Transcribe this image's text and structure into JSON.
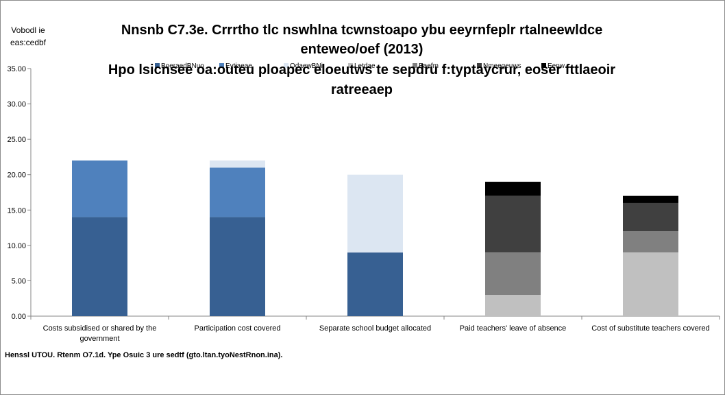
{
  "chart_data": {
    "type": "bar",
    "stacked": true,
    "title_lines": [
      "Nnsnb C7.3e. Crrrtho tlc nswhlna tcwnstoapo ybu eeyrnfeplr rtalneewldce",
      "enteweo/oef (2013)",
      "Hpo lsicnsee oa:outeu ploapec eloeutws te sepdru f:typtaycrur, eoser fttlaeoir",
      "ratreeaep"
    ],
    "ylabel_lines": [
      "Vobodl ie",
      "eas:cedbf"
    ],
    "xlabel": "",
    "ylim": [
      0,
      35
    ],
    "yticks": [
      "0.00",
      "5.00",
      "10.00",
      "15.00",
      "20.00",
      "25.00",
      "30.00",
      "35.00"
    ],
    "grid": false,
    "legend_position": "top",
    "categories": [
      [
        "Costs subsidised or shared by the",
        "government"
      ],
      [
        "Participation cost covered"
      ],
      [
        "Separate school budget allocated"
      ],
      [
        "Paid teachers' leave of absence"
      ],
      [
        "Cost of substitute teachers covered"
      ]
    ],
    "series": [
      {
        "name": "BoeraedBNuo",
        "color": "#376092",
        "values": [
          14,
          14,
          9,
          0,
          0
        ]
      },
      {
        "name": "Eytiaeae",
        "color": "#4f81bd",
        "values": [
          8,
          7,
          0,
          0,
          0
        ]
      },
      {
        "name": "OdaewBNi",
        "color": "#dce6f2",
        "values": [
          0,
          1,
          11,
          0,
          0
        ]
      },
      {
        "name": "Letdae",
        "color": "#c0c0c0",
        "values": [
          0,
          0,
          0,
          3,
          9
        ]
      },
      {
        "name": "Eaefm",
        "color": "#808080",
        "values": [
          0,
          0,
          0,
          6,
          3
        ]
      },
      {
        "name": "Nmeegeuws",
        "color": "#404040",
        "values": [
          0,
          0,
          0,
          8,
          4
        ]
      },
      {
        "name": "Eenw",
        "color": "#000000",
        "values": [
          0,
          0,
          0,
          2,
          1
        ]
      }
    ]
  },
  "source": "Henssl UTOU. Rtenm O7.1d. Ype Osuic 3 ure sedtf (gto.ltan.tyoNestRnon.ina)."
}
